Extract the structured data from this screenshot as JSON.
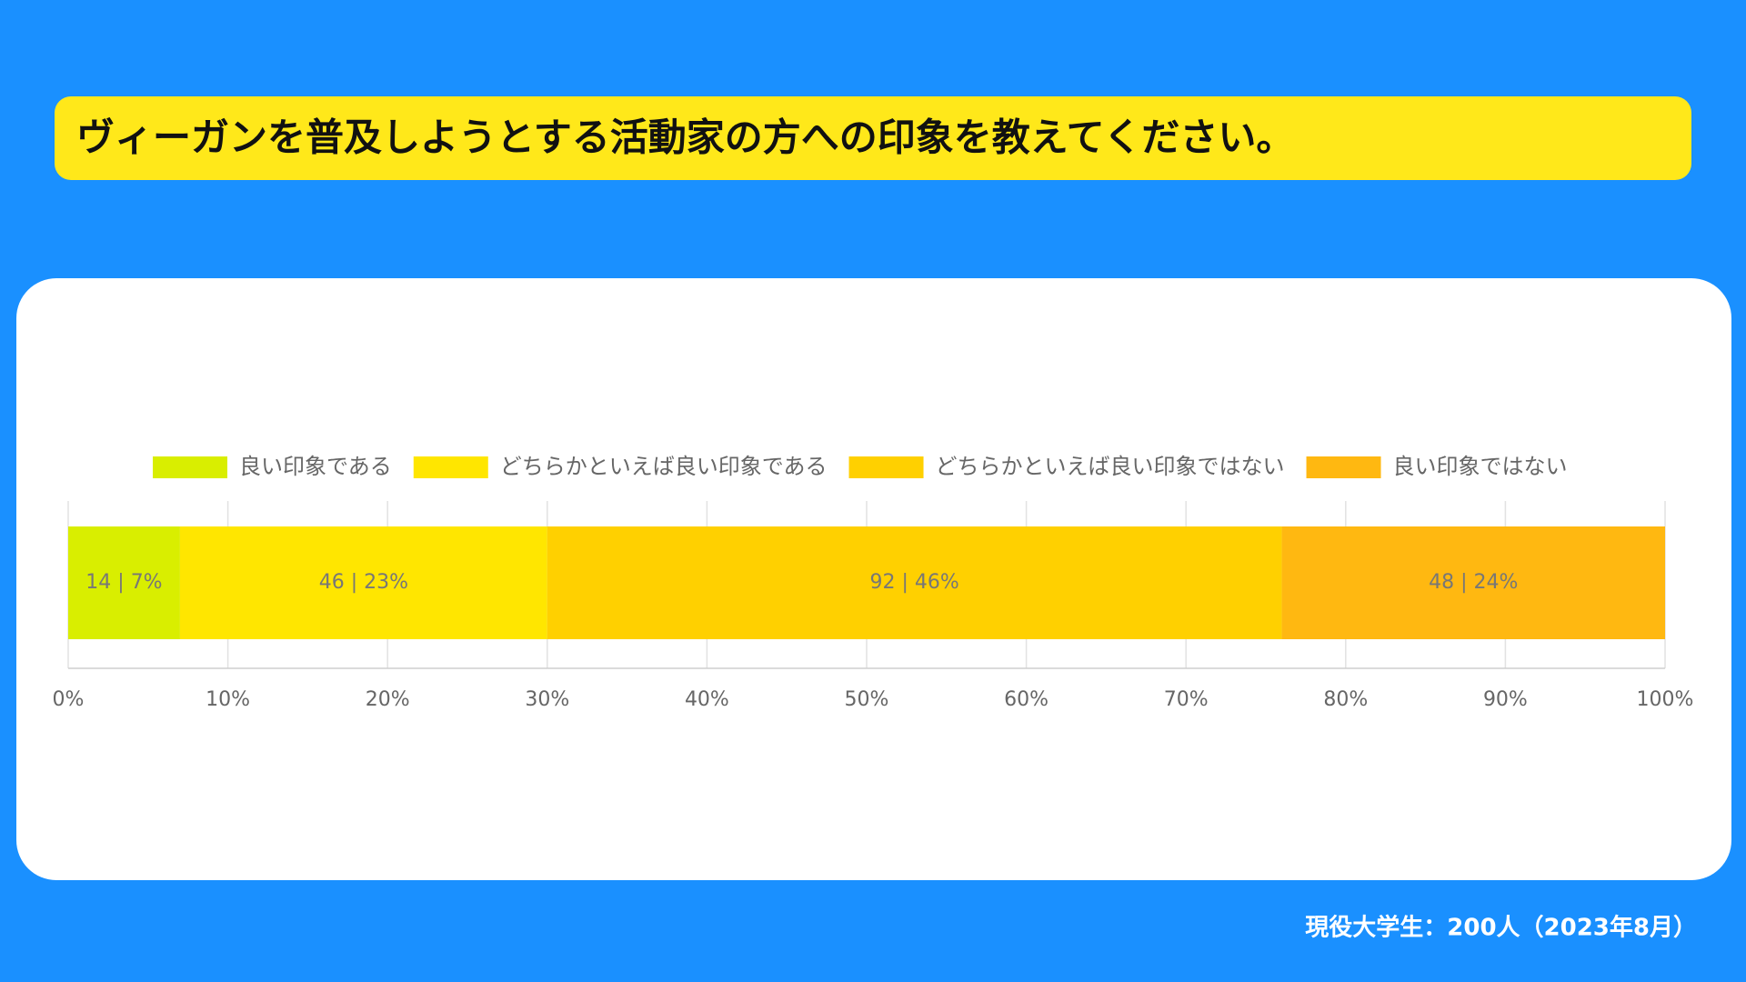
{
  "chart_data": {
    "type": "stacked-bar-horizontal",
    "title": "ヴィーガンを普及しようとする活動家の方への印象を教えてください。",
    "footnote": "現役大学生：200人（2023年8月）",
    "categories": [
      null
    ],
    "series": [
      {
        "name": "良い印象である",
        "color": "#d9ee00",
        "values": [
          7
        ],
        "value_labels": [
          "14 | 7%"
        ]
      },
      {
        "name": "どちらかといえば良い印象である",
        "color": "#ffe600",
        "values": [
          23
        ],
        "value_labels": [
          "46 | 23%"
        ]
      },
      {
        "name": "どちらかといえば良い印象ではない",
        "color": "#ffd000",
        "values": [
          46
        ],
        "value_labels": [
          "92 | 46%"
        ]
      },
      {
        "name": "良い印象ではない",
        "color": "#ffb811",
        "values": [
          24
        ],
        "value_labels": [
          "48 | 24%"
        ]
      }
    ],
    "xlim": [
      0,
      100
    ],
    "xticks": [
      {
        "value": 0,
        "label": "0%"
      },
      {
        "value": 10,
        "label": "10%"
      },
      {
        "value": 20,
        "label": "20%"
      },
      {
        "value": 30,
        "label": "30%"
      },
      {
        "value": 40,
        "label": "40%"
      },
      {
        "value": 50,
        "label": "50%"
      },
      {
        "value": 60,
        "label": "60%"
      },
      {
        "value": 70,
        "label": "70%"
      },
      {
        "value": 80,
        "label": "80%"
      },
      {
        "value": 90,
        "label": "90%"
      },
      {
        "value": 100,
        "label": "100%"
      }
    ],
    "grid": true,
    "legend": "top"
  }
}
